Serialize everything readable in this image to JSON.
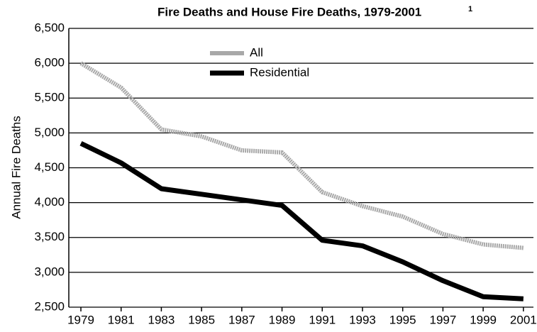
{
  "chart_data": {
    "type": "line",
    "title": "Fire Deaths and House Fire Deaths, 1979-2001",
    "title_superscript": "1",
    "y_label": "Annual Fire Deaths",
    "x": [
      1979,
      1981,
      1983,
      1985,
      1987,
      1989,
      1991,
      1993,
      1995,
      1997,
      1999,
      2001
    ],
    "series": [
      {
        "name": "All",
        "color": "#a8a8a8",
        "values": [
          6000,
          5650,
          5050,
          4950,
          4750,
          4720,
          4150,
          3950,
          3800,
          3550,
          3400,
          3350
        ]
      },
      {
        "name": "Residential",
        "color": "#000000",
        "values": [
          4850,
          4570,
          4200,
          4120,
          4040,
          3960,
          3460,
          3380,
          3150,
          2880,
          2650,
          2620
        ]
      }
    ],
    "xlim": [
      1978.4,
      2001.5
    ],
    "xticks": [
      1979,
      1981,
      1983,
      1985,
      1987,
      1989,
      1991,
      1993,
      1995,
      1997,
      1999,
      2001
    ],
    "ylim": [
      2500,
      6500
    ],
    "yticks": [
      {
        "value": 2500,
        "label": "2,500"
      },
      {
        "value": 3000,
        "label": "3,000"
      },
      {
        "value": 3500,
        "label": "3,500"
      },
      {
        "value": 4000,
        "label": "4,000"
      },
      {
        "value": 4500,
        "label": "4,500"
      },
      {
        "value": 5000,
        "label": "5,000"
      },
      {
        "value": 5500,
        "label": "5,500"
      },
      {
        "value": 6000,
        "label": "6,000"
      },
      {
        "value": 6500,
        "label": "6,500"
      }
    ],
    "grid": true,
    "legend": "top"
  }
}
